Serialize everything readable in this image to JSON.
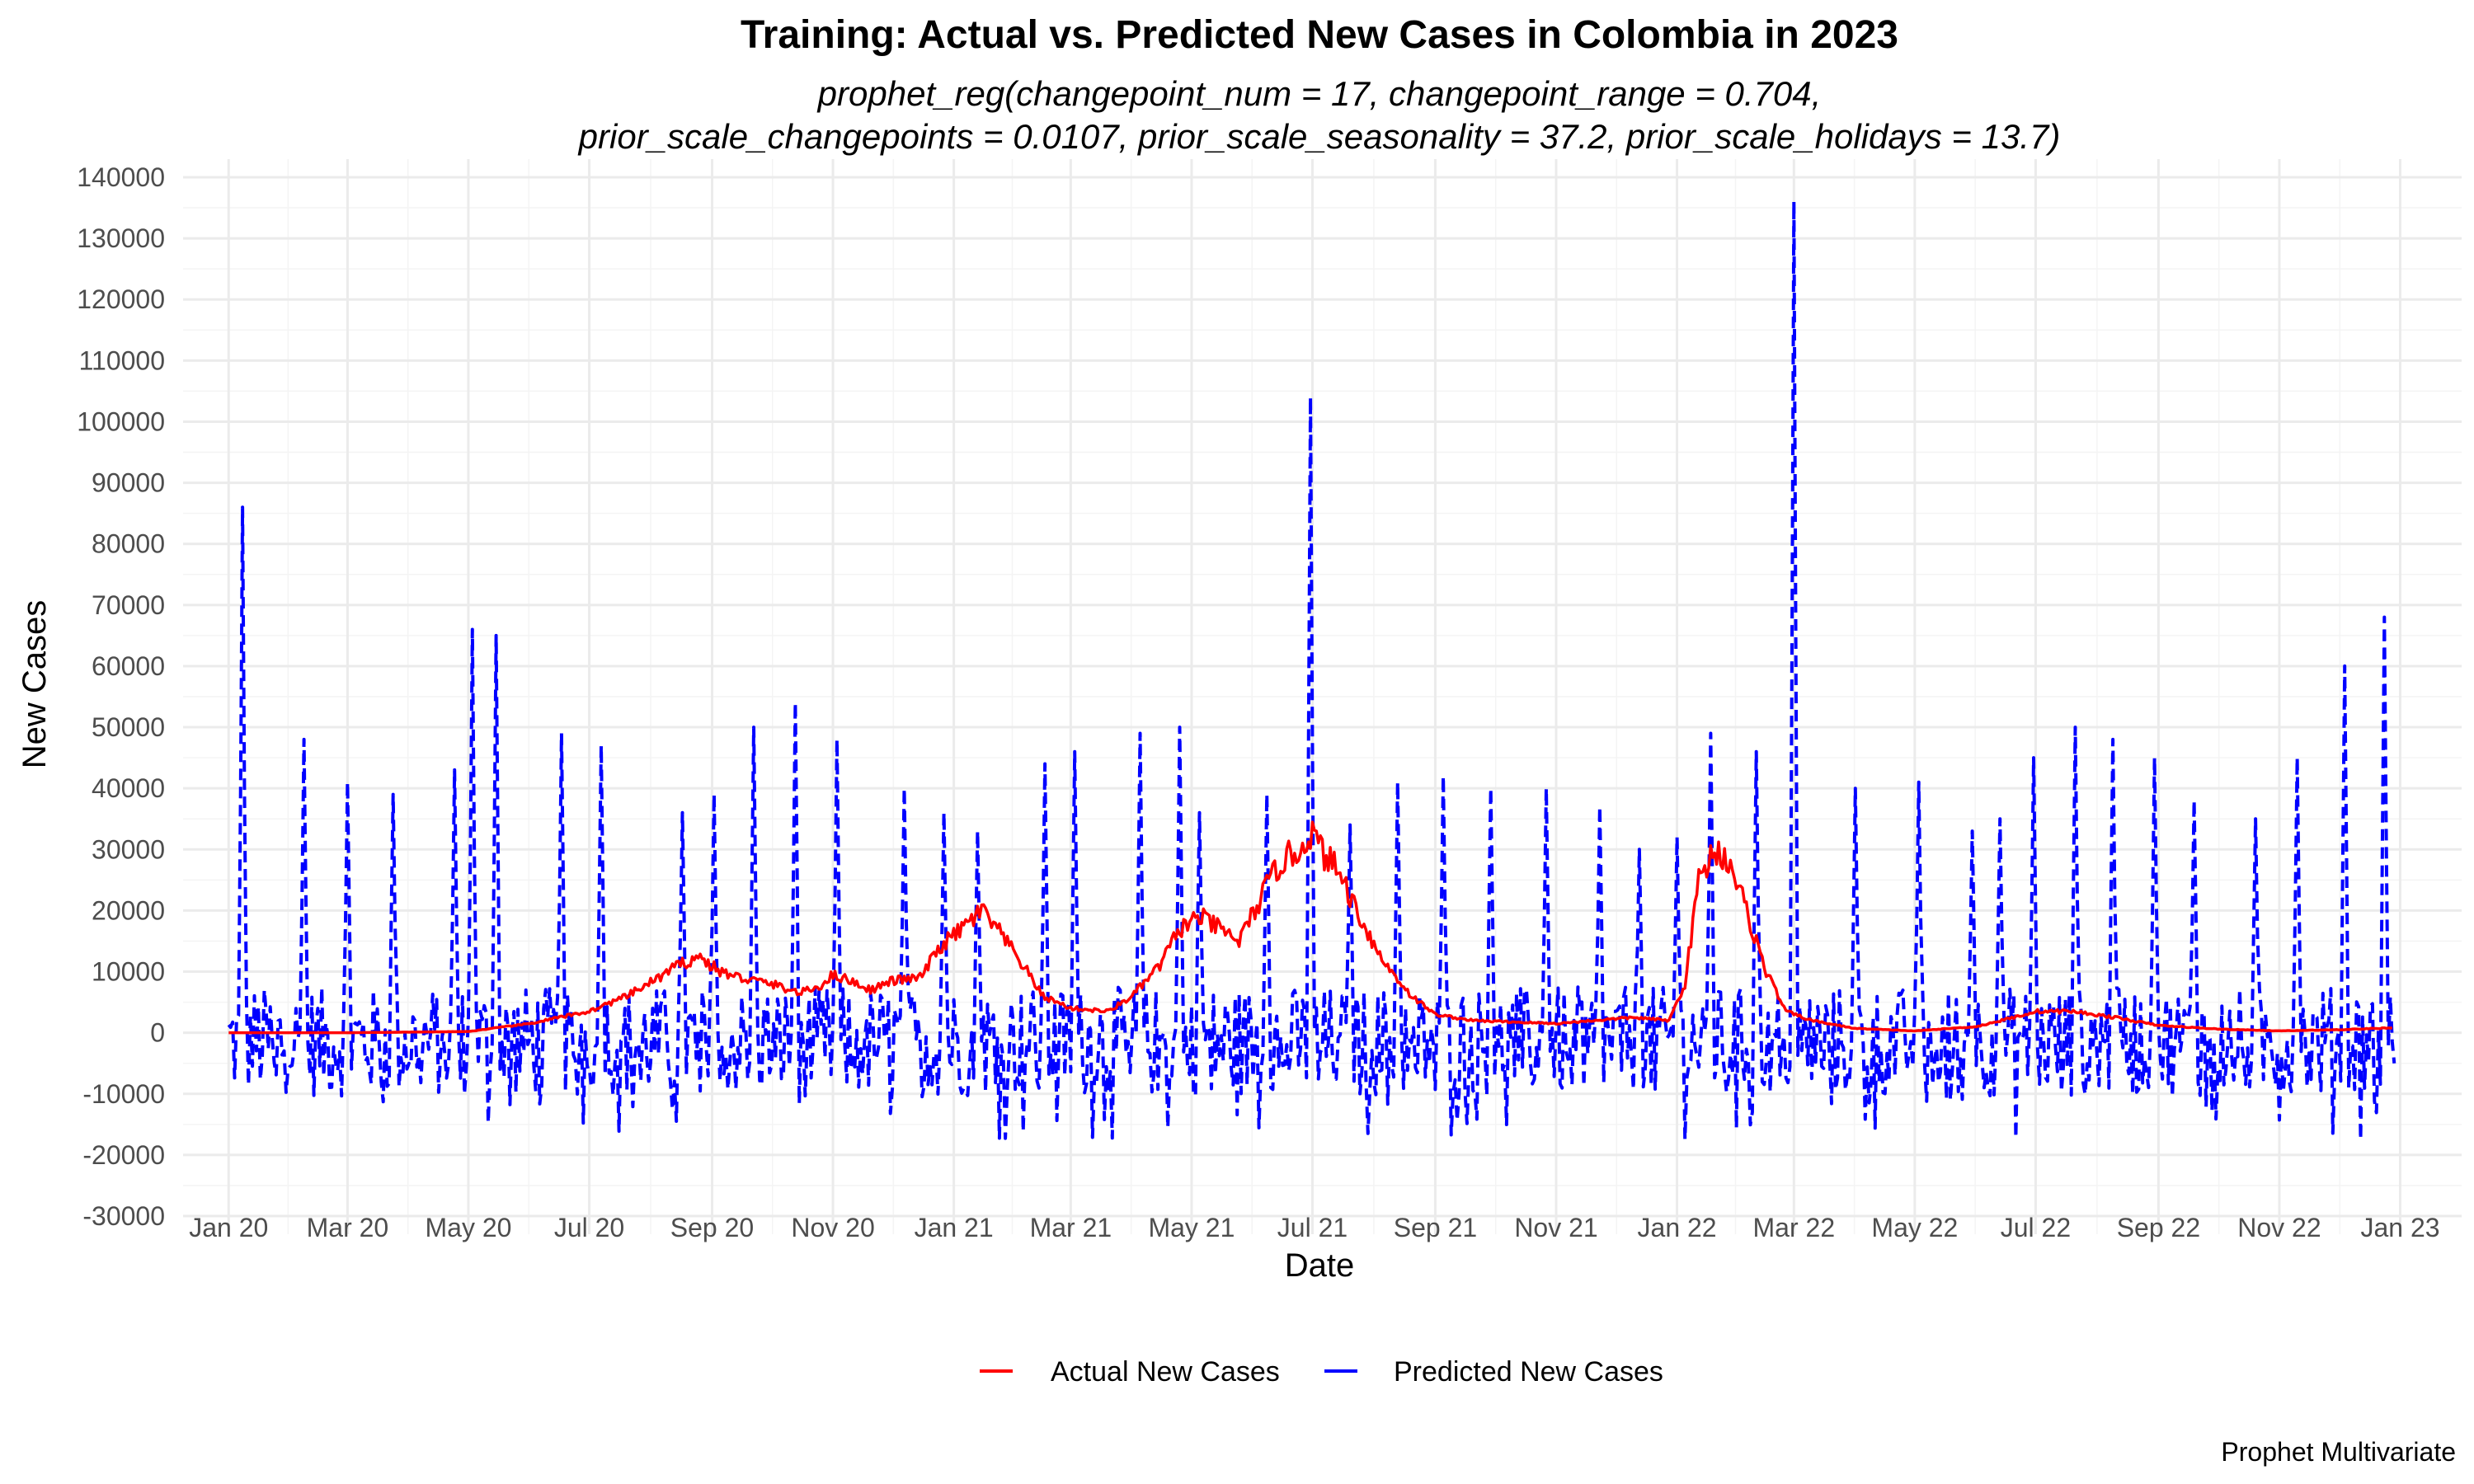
{
  "chart_data": {
    "type": "line",
    "title": "Training: Actual vs. Predicted New Cases in Colombia in 2023",
    "subtitle_lines": [
      "prophet_reg(changepoint_num = 17, changepoint_range = 0.704,",
      "prior_scale_changepoints = 0.0107, prior_scale_seasonality = 37.2, prior_scale_holidays = 13.7)"
    ],
    "xlabel": "Date",
    "ylabel": "New Cases",
    "caption": "Prophet Multivariate",
    "ylim": [
      -30000,
      140000
    ],
    "y_ticks": [
      -30000,
      -20000,
      -10000,
      0,
      10000,
      20000,
      30000,
      40000,
      50000,
      60000,
      70000,
      80000,
      90000,
      100000,
      110000,
      120000,
      130000,
      140000
    ],
    "xlim": [
      "2019-12-09",
      "2023-02-01"
    ],
    "x_ticks": [
      {
        "date": "2020-01-01",
        "label": "Jan 20"
      },
      {
        "date": "2020-03-01",
        "label": "Mar 20"
      },
      {
        "date": "2020-05-01",
        "label": "May 20"
      },
      {
        "date": "2020-07-01",
        "label": "Jul 20"
      },
      {
        "date": "2020-09-01",
        "label": "Sep 20"
      },
      {
        "date": "2020-11-01",
        "label": "Nov 20"
      },
      {
        "date": "2021-01-01",
        "label": "Jan 21"
      },
      {
        "date": "2021-03-01",
        "label": "Mar 21"
      },
      {
        "date": "2021-05-01",
        "label": "May 21"
      },
      {
        "date": "2021-07-01",
        "label": "Jul 21"
      },
      {
        "date": "2021-09-01",
        "label": "Sep 21"
      },
      {
        "date": "2021-11-01",
        "label": "Nov 21"
      },
      {
        "date": "2022-01-01",
        "label": "Jan 22"
      },
      {
        "date": "2022-03-01",
        "label": "Mar 22"
      },
      {
        "date": "2022-05-01",
        "label": "May 22"
      },
      {
        "date": "2022-07-01",
        "label": "Jul 22"
      },
      {
        "date": "2022-09-01",
        "label": "Sep 22"
      },
      {
        "date": "2022-11-01",
        "label": "Nov 22"
      },
      {
        "date": "2023-01-01",
        "label": "Jan 23"
      }
    ],
    "grid": true,
    "legend_position": "bottom",
    "series": [
      {
        "name": "Actual New Cases",
        "color": "#ff0000",
        "line_style": "solid",
        "points": [
          [
            "2020-01-01",
            0
          ],
          [
            "2020-03-01",
            0
          ],
          [
            "2020-05-01",
            200
          ],
          [
            "2020-06-01",
            1500
          ],
          [
            "2020-07-01",
            3500
          ],
          [
            "2020-07-20",
            6000
          ],
          [
            "2020-08-05",
            9000
          ],
          [
            "2020-08-15",
            11000
          ],
          [
            "2020-08-25",
            12500
          ],
          [
            "2020-09-05",
            10000
          ],
          [
            "2020-09-15",
            9000
          ],
          [
            "2020-10-01",
            8000
          ],
          [
            "2020-10-15",
            6500
          ],
          [
            "2020-10-25",
            7500
          ],
          [
            "2020-11-01",
            9500
          ],
          [
            "2020-11-10",
            8500
          ],
          [
            "2020-11-20",
            7000
          ],
          [
            "2020-12-01",
            8500
          ],
          [
            "2020-12-15",
            9000
          ],
          [
            "2020-12-25",
            14000
          ],
          [
            "2021-01-05",
            17000
          ],
          [
            "2021-01-15",
            20000
          ],
          [
            "2021-01-25",
            16000
          ],
          [
            "2021-02-05",
            11000
          ],
          [
            "2021-02-15",
            6000
          ],
          [
            "2021-03-01",
            4000
          ],
          [
            "2021-03-20",
            3500
          ],
          [
            "2021-04-01",
            6000
          ],
          [
            "2021-04-15",
            11000
          ],
          [
            "2021-04-25",
            17000
          ],
          [
            "2021-05-05",
            19000
          ],
          [
            "2021-05-15",
            17000
          ],
          [
            "2021-05-25",
            15000
          ],
          [
            "2021-06-05",
            22000
          ],
          [
            "2021-06-15",
            28000
          ],
          [
            "2021-06-25",
            30000
          ],
          [
            "2021-06-30",
            33000
          ],
          [
            "2021-07-05",
            30000
          ],
          [
            "2021-07-15",
            26000
          ],
          [
            "2021-07-25",
            19000
          ],
          [
            "2021-08-05",
            12000
          ],
          [
            "2021-08-20",
            6000
          ],
          [
            "2021-09-01",
            3000
          ],
          [
            "2021-09-20",
            2000
          ],
          [
            "2021-10-15",
            1700
          ],
          [
            "2021-11-01",
            1500
          ],
          [
            "2021-11-20",
            2000
          ],
          [
            "2021-12-10",
            2500
          ],
          [
            "2021-12-28",
            2000
          ],
          [
            "2022-01-05",
            8000
          ],
          [
            "2022-01-12",
            25000
          ],
          [
            "2022-01-20",
            30000
          ],
          [
            "2022-01-28",
            28000
          ],
          [
            "2022-02-05",
            20000
          ],
          [
            "2022-02-15",
            10000
          ],
          [
            "2022-02-25",
            3500
          ],
          [
            "2022-03-10",
            2000
          ],
          [
            "2022-04-01",
            700
          ],
          [
            "2022-05-01",
            300
          ],
          [
            "2022-06-01",
            1000
          ],
          [
            "2022-06-20",
            2500
          ],
          [
            "2022-07-01",
            3500
          ],
          [
            "2022-07-20",
            3500
          ],
          [
            "2022-08-10",
            2500
          ],
          [
            "2022-09-01",
            1200
          ],
          [
            "2022-10-01",
            600
          ],
          [
            "2022-11-01",
            300
          ],
          [
            "2022-12-01",
            500
          ],
          [
            "2022-12-28",
            800
          ]
        ]
      },
      {
        "name": "Predicted New Cases",
        "color": "#0000ff",
        "line_style": "dashed",
        "spikes": [
          [
            "2020-01-08",
            86000
          ],
          [
            "2020-02-08",
            48000
          ],
          [
            "2020-03-01",
            41000
          ],
          [
            "2020-03-24",
            39000
          ],
          [
            "2020-04-24",
            43000
          ],
          [
            "2020-05-03",
            66000
          ],
          [
            "2020-05-15",
            65000
          ],
          [
            "2020-06-17",
            49000
          ],
          [
            "2020-07-07",
            47000
          ],
          [
            "2020-08-17",
            36000
          ],
          [
            "2020-09-02",
            39000
          ],
          [
            "2020-09-22",
            50000
          ],
          [
            "2020-10-13",
            54000
          ],
          [
            "2020-11-03",
            48000
          ],
          [
            "2020-12-07",
            40000
          ],
          [
            "2020-12-27",
            36000
          ],
          [
            "2021-01-13",
            33000
          ],
          [
            "2021-02-16",
            44000
          ],
          [
            "2021-03-03",
            46000
          ],
          [
            "2021-04-05",
            49000
          ],
          [
            "2021-04-25",
            50000
          ],
          [
            "2021-05-05",
            36000
          ],
          [
            "2021-06-08",
            39000
          ],
          [
            "2021-06-30",
            104000
          ],
          [
            "2021-07-20",
            34000
          ],
          [
            "2021-08-13",
            41000
          ],
          [
            "2021-09-05",
            42000
          ],
          [
            "2021-09-29",
            40000
          ],
          [
            "2021-10-27",
            40000
          ],
          [
            "2021-11-23",
            37000
          ],
          [
            "2021-12-13",
            30000
          ],
          [
            "2022-01-01",
            32000
          ],
          [
            "2022-01-18",
            49000
          ],
          [
            "2022-02-10",
            46000
          ],
          [
            "2022-03-01",
            136000
          ],
          [
            "2022-04-01",
            40000
          ],
          [
            "2022-05-03",
            41000
          ],
          [
            "2022-05-30",
            33000
          ],
          [
            "2022-06-13",
            35000
          ],
          [
            "2022-06-30",
            45000
          ],
          [
            "2022-07-21",
            50000
          ],
          [
            "2022-08-09",
            48000
          ],
          [
            "2022-08-30",
            45000
          ],
          [
            "2022-09-19",
            38000
          ],
          [
            "2022-10-20",
            35000
          ],
          [
            "2022-11-10",
            45000
          ],
          [
            "2022-12-04",
            60000
          ],
          [
            "2022-12-24",
            68000
          ]
        ]
      }
    ]
  }
}
